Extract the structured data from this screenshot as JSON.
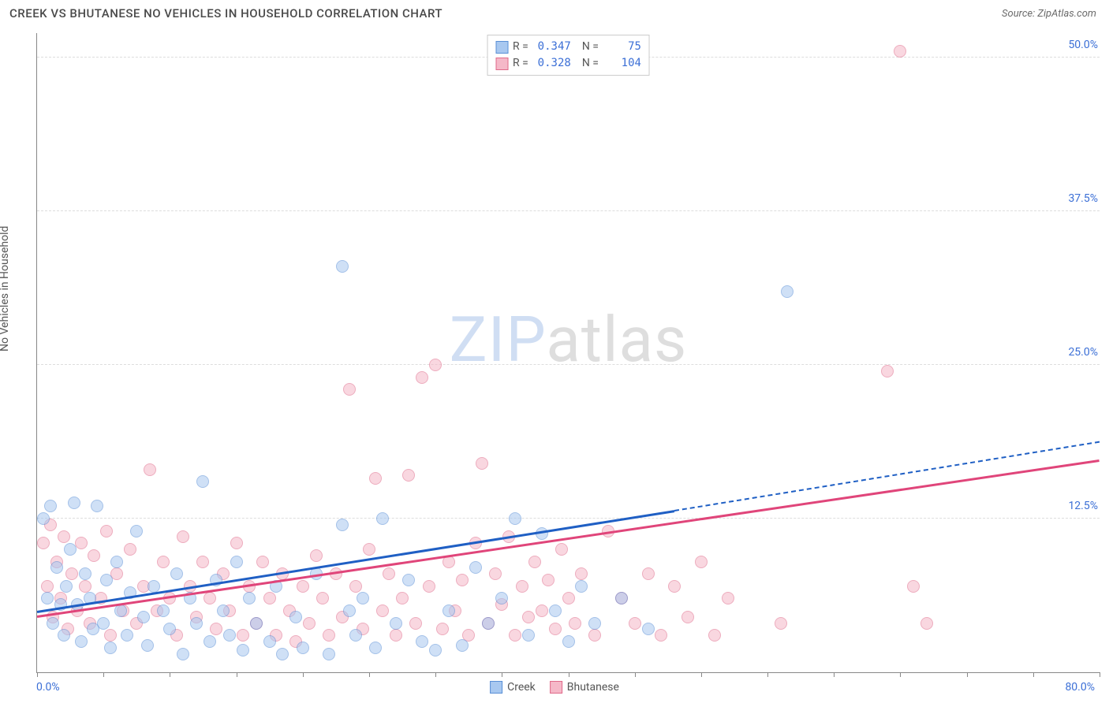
{
  "header": {
    "title": "CREEK VS BHUTANESE NO VEHICLES IN HOUSEHOLD CORRELATION CHART",
    "source": "Source: ZipAtlas.com"
  },
  "chart": {
    "type": "scatter",
    "background_color": "#ffffff",
    "grid_color": "#dddddd",
    "axis_color": "#888888",
    "xlim": [
      0,
      80
    ],
    "ylim": [
      0,
      52
    ],
    "x_start_label": "0.0%",
    "x_end_label": "80.0%",
    "xtick_positions": [
      0,
      5,
      10,
      15,
      20,
      25,
      30,
      35,
      40,
      45,
      50,
      55,
      60,
      65,
      70,
      75,
      80
    ],
    "ytick_positions": [
      12.5,
      25.0,
      37.5,
      50.0
    ],
    "ytick_labels": [
      "12.5%",
      "25.0%",
      "37.5%",
      "50.0%"
    ],
    "yaxis_label": "No Vehicles in Household",
    "label_color": "#555555",
    "tick_label_color": "#3b6fd6",
    "tick_label_fontsize": 14,
    "marker_radius": 8,
    "marker_opacity": 0.55,
    "watermark": {
      "text_a": "ZIP",
      "text_b": "atlas",
      "fontsize": 80
    }
  },
  "legend_top": {
    "rows": [
      {
        "swatch_fill": "#a8c8f0",
        "swatch_border": "#5a8fd6",
        "r_label": "R =",
        "r_value": "0.347",
        "n_label": "N =",
        "n_value": "75"
      },
      {
        "swatch_fill": "#f5b8c8",
        "swatch_border": "#e06a8a",
        "r_label": "R =",
        "r_value": "0.328",
        "n_label": "N =",
        "n_value": "104"
      }
    ]
  },
  "legend_bottom": {
    "items": [
      {
        "swatch_fill": "#a8c8f0",
        "swatch_border": "#5a8fd6",
        "label": "Creek"
      },
      {
        "swatch_fill": "#f5b8c8",
        "swatch_border": "#e06a8a",
        "label": "Bhutanese"
      }
    ]
  },
  "series": {
    "creek": {
      "fill": "#a8c8f0",
      "border": "#5a8fd6",
      "trend_color": "#1f5fc4",
      "trend": {
        "x1": 0,
        "y1": 5.0,
        "x2": 48,
        "y2": 13.2,
        "x_dash_end": 80,
        "y_dash_end": 18.8
      },
      "points": [
        [
          0.8,
          6.0
        ],
        [
          0.5,
          12.5
        ],
        [
          1.0,
          13.5
        ],
        [
          1.2,
          4.0
        ],
        [
          1.5,
          8.5
        ],
        [
          1.8,
          5.5
        ],
        [
          2.0,
          3.0
        ],
        [
          2.2,
          7.0
        ],
        [
          2.5,
          10.0
        ],
        [
          2.8,
          13.8
        ],
        [
          3.0,
          5.5
        ],
        [
          3.3,
          2.5
        ],
        [
          3.6,
          8.0
        ],
        [
          4.0,
          6.0
        ],
        [
          4.2,
          3.5
        ],
        [
          4.5,
          13.5
        ],
        [
          5.0,
          4.0
        ],
        [
          5.2,
          7.5
        ],
        [
          5.5,
          2.0
        ],
        [
          6.0,
          9.0
        ],
        [
          6.3,
          5.0
        ],
        [
          6.8,
          3.0
        ],
        [
          7.0,
          6.5
        ],
        [
          7.5,
          11.5
        ],
        [
          8.0,
          4.5
        ],
        [
          8.3,
          2.2
        ],
        [
          8.8,
          7.0
        ],
        [
          9.5,
          5.0
        ],
        [
          10.0,
          3.5
        ],
        [
          10.5,
          8.0
        ],
        [
          11.0,
          1.5
        ],
        [
          11.5,
          6.0
        ],
        [
          12.0,
          4.0
        ],
        [
          12.5,
          15.5
        ],
        [
          13.0,
          2.5
        ],
        [
          13.5,
          7.5
        ],
        [
          14.0,
          5.0
        ],
        [
          14.5,
          3.0
        ],
        [
          15.0,
          9.0
        ],
        [
          15.5,
          1.8
        ],
        [
          16.0,
          6.0
        ],
        [
          16.5,
          4.0
        ],
        [
          17.5,
          2.5
        ],
        [
          18.0,
          7.0
        ],
        [
          18.5,
          1.5
        ],
        [
          19.5,
          4.5
        ],
        [
          20.0,
          2.0
        ],
        [
          21.0,
          8.0
        ],
        [
          22.0,
          1.5
        ],
        [
          23.0,
          12.0
        ],
        [
          23.5,
          5.0
        ],
        [
          23.0,
          33.0
        ],
        [
          24.0,
          3.0
        ],
        [
          24.5,
          6.0
        ],
        [
          25.5,
          2.0
        ],
        [
          26.0,
          12.5
        ],
        [
          27.0,
          4.0
        ],
        [
          28.0,
          7.5
        ],
        [
          29.0,
          2.5
        ],
        [
          30.0,
          1.8
        ],
        [
          31.0,
          5.0
        ],
        [
          32.0,
          2.2
        ],
        [
          33.0,
          8.5
        ],
        [
          34.0,
          4.0
        ],
        [
          35.0,
          6.0
        ],
        [
          36.0,
          12.5
        ],
        [
          37.0,
          3.0
        ],
        [
          38.0,
          11.3
        ],
        [
          39.0,
          5.0
        ],
        [
          40.0,
          2.5
        ],
        [
          41.0,
          7.0
        ],
        [
          42.0,
          4.0
        ],
        [
          44.0,
          6.0
        ],
        [
          46.0,
          3.5
        ],
        [
          56.5,
          31.0
        ]
      ]
    },
    "bhutanese": {
      "fill": "#f5b8c8",
      "border": "#e06a8a",
      "trend_color": "#e0457a",
      "trend": {
        "x1": 0,
        "y1": 4.6,
        "x2": 80,
        "y2": 17.3
      },
      "points": [
        [
          0.5,
          10.5
        ],
        [
          0.8,
          7.0
        ],
        [
          1.0,
          12.0
        ],
        [
          1.2,
          4.5
        ],
        [
          1.5,
          9.0
        ],
        [
          1.8,
          6.0
        ],
        [
          2.0,
          11.0
        ],
        [
          2.3,
          3.5
        ],
        [
          2.6,
          8.0
        ],
        [
          3.0,
          5.0
        ],
        [
          3.3,
          10.5
        ],
        [
          3.6,
          7.0
        ],
        [
          4.0,
          4.0
        ],
        [
          4.3,
          9.5
        ],
        [
          4.8,
          6.0
        ],
        [
          5.2,
          11.5
        ],
        [
          5.5,
          3.0
        ],
        [
          6.0,
          8.0
        ],
        [
          6.5,
          5.0
        ],
        [
          7.0,
          10.0
        ],
        [
          7.5,
          4.0
        ],
        [
          8.0,
          7.0
        ],
        [
          8.5,
          16.5
        ],
        [
          9.0,
          5.0
        ],
        [
          9.5,
          9.0
        ],
        [
          10.0,
          6.0
        ],
        [
          10.5,
          3.0
        ],
        [
          11.0,
          11.0
        ],
        [
          11.5,
          7.0
        ],
        [
          12.0,
          4.5
        ],
        [
          12.5,
          9.0
        ],
        [
          13.0,
          6.0
        ],
        [
          13.5,
          3.5
        ],
        [
          14.0,
          8.0
        ],
        [
          14.5,
          5.0
        ],
        [
          15.0,
          10.5
        ],
        [
          15.5,
          3.0
        ],
        [
          16.0,
          7.0
        ],
        [
          16.5,
          4.0
        ],
        [
          17.0,
          9.0
        ],
        [
          17.5,
          6.0
        ],
        [
          18.0,
          3.0
        ],
        [
          18.5,
          8.0
        ],
        [
          19.0,
          5.0
        ],
        [
          19.5,
          2.5
        ],
        [
          20.0,
          7.0
        ],
        [
          20.5,
          4.0
        ],
        [
          21.0,
          9.5
        ],
        [
          21.5,
          6.0
        ],
        [
          22.0,
          3.0
        ],
        [
          22.5,
          8.0
        ],
        [
          23.0,
          4.5
        ],
        [
          23.5,
          23.0
        ],
        [
          24.0,
          7.0
        ],
        [
          24.5,
          3.5
        ],
        [
          25.0,
          10.0
        ],
        [
          25.5,
          15.8
        ],
        [
          26.0,
          5.0
        ],
        [
          26.5,
          8.0
        ],
        [
          27.0,
          3.0
        ],
        [
          27.5,
          6.0
        ],
        [
          28.0,
          16.0
        ],
        [
          28.5,
          4.0
        ],
        [
          29.0,
          24.0
        ],
        [
          29.5,
          7.0
        ],
        [
          30.0,
          25.0
        ],
        [
          30.5,
          3.5
        ],
        [
          31.0,
          9.0
        ],
        [
          31.5,
          5.0
        ],
        [
          32.0,
          7.5
        ],
        [
          32.5,
          3.0
        ],
        [
          33.0,
          10.5
        ],
        [
          33.5,
          17.0
        ],
        [
          34.0,
          4.0
        ],
        [
          34.5,
          8.0
        ],
        [
          35.0,
          5.5
        ],
        [
          35.5,
          11.0
        ],
        [
          36.0,
          3.0
        ],
        [
          36.5,
          7.0
        ],
        [
          37.0,
          4.5
        ],
        [
          37.5,
          9.0
        ],
        [
          38.0,
          5.0
        ],
        [
          38.5,
          7.5
        ],
        [
          39.0,
          3.5
        ],
        [
          39.5,
          10.0
        ],
        [
          40.0,
          6.0
        ],
        [
          40.5,
          4.0
        ],
        [
          41.0,
          8.0
        ],
        [
          42.0,
          3.0
        ],
        [
          43.0,
          11.5
        ],
        [
          44.0,
          6.0
        ],
        [
          45.0,
          4.0
        ],
        [
          46.0,
          8.0
        ],
        [
          47.0,
          3.0
        ],
        [
          48.0,
          7.0
        ],
        [
          49.0,
          4.5
        ],
        [
          50.0,
          9.0
        ],
        [
          51.0,
          3.0
        ],
        [
          52.0,
          6.0
        ],
        [
          56.0,
          4.0
        ],
        [
          64.0,
          24.5
        ],
        [
          65.0,
          50.5
        ],
        [
          66.0,
          7.0
        ],
        [
          67.0,
          4.0
        ]
      ]
    }
  }
}
